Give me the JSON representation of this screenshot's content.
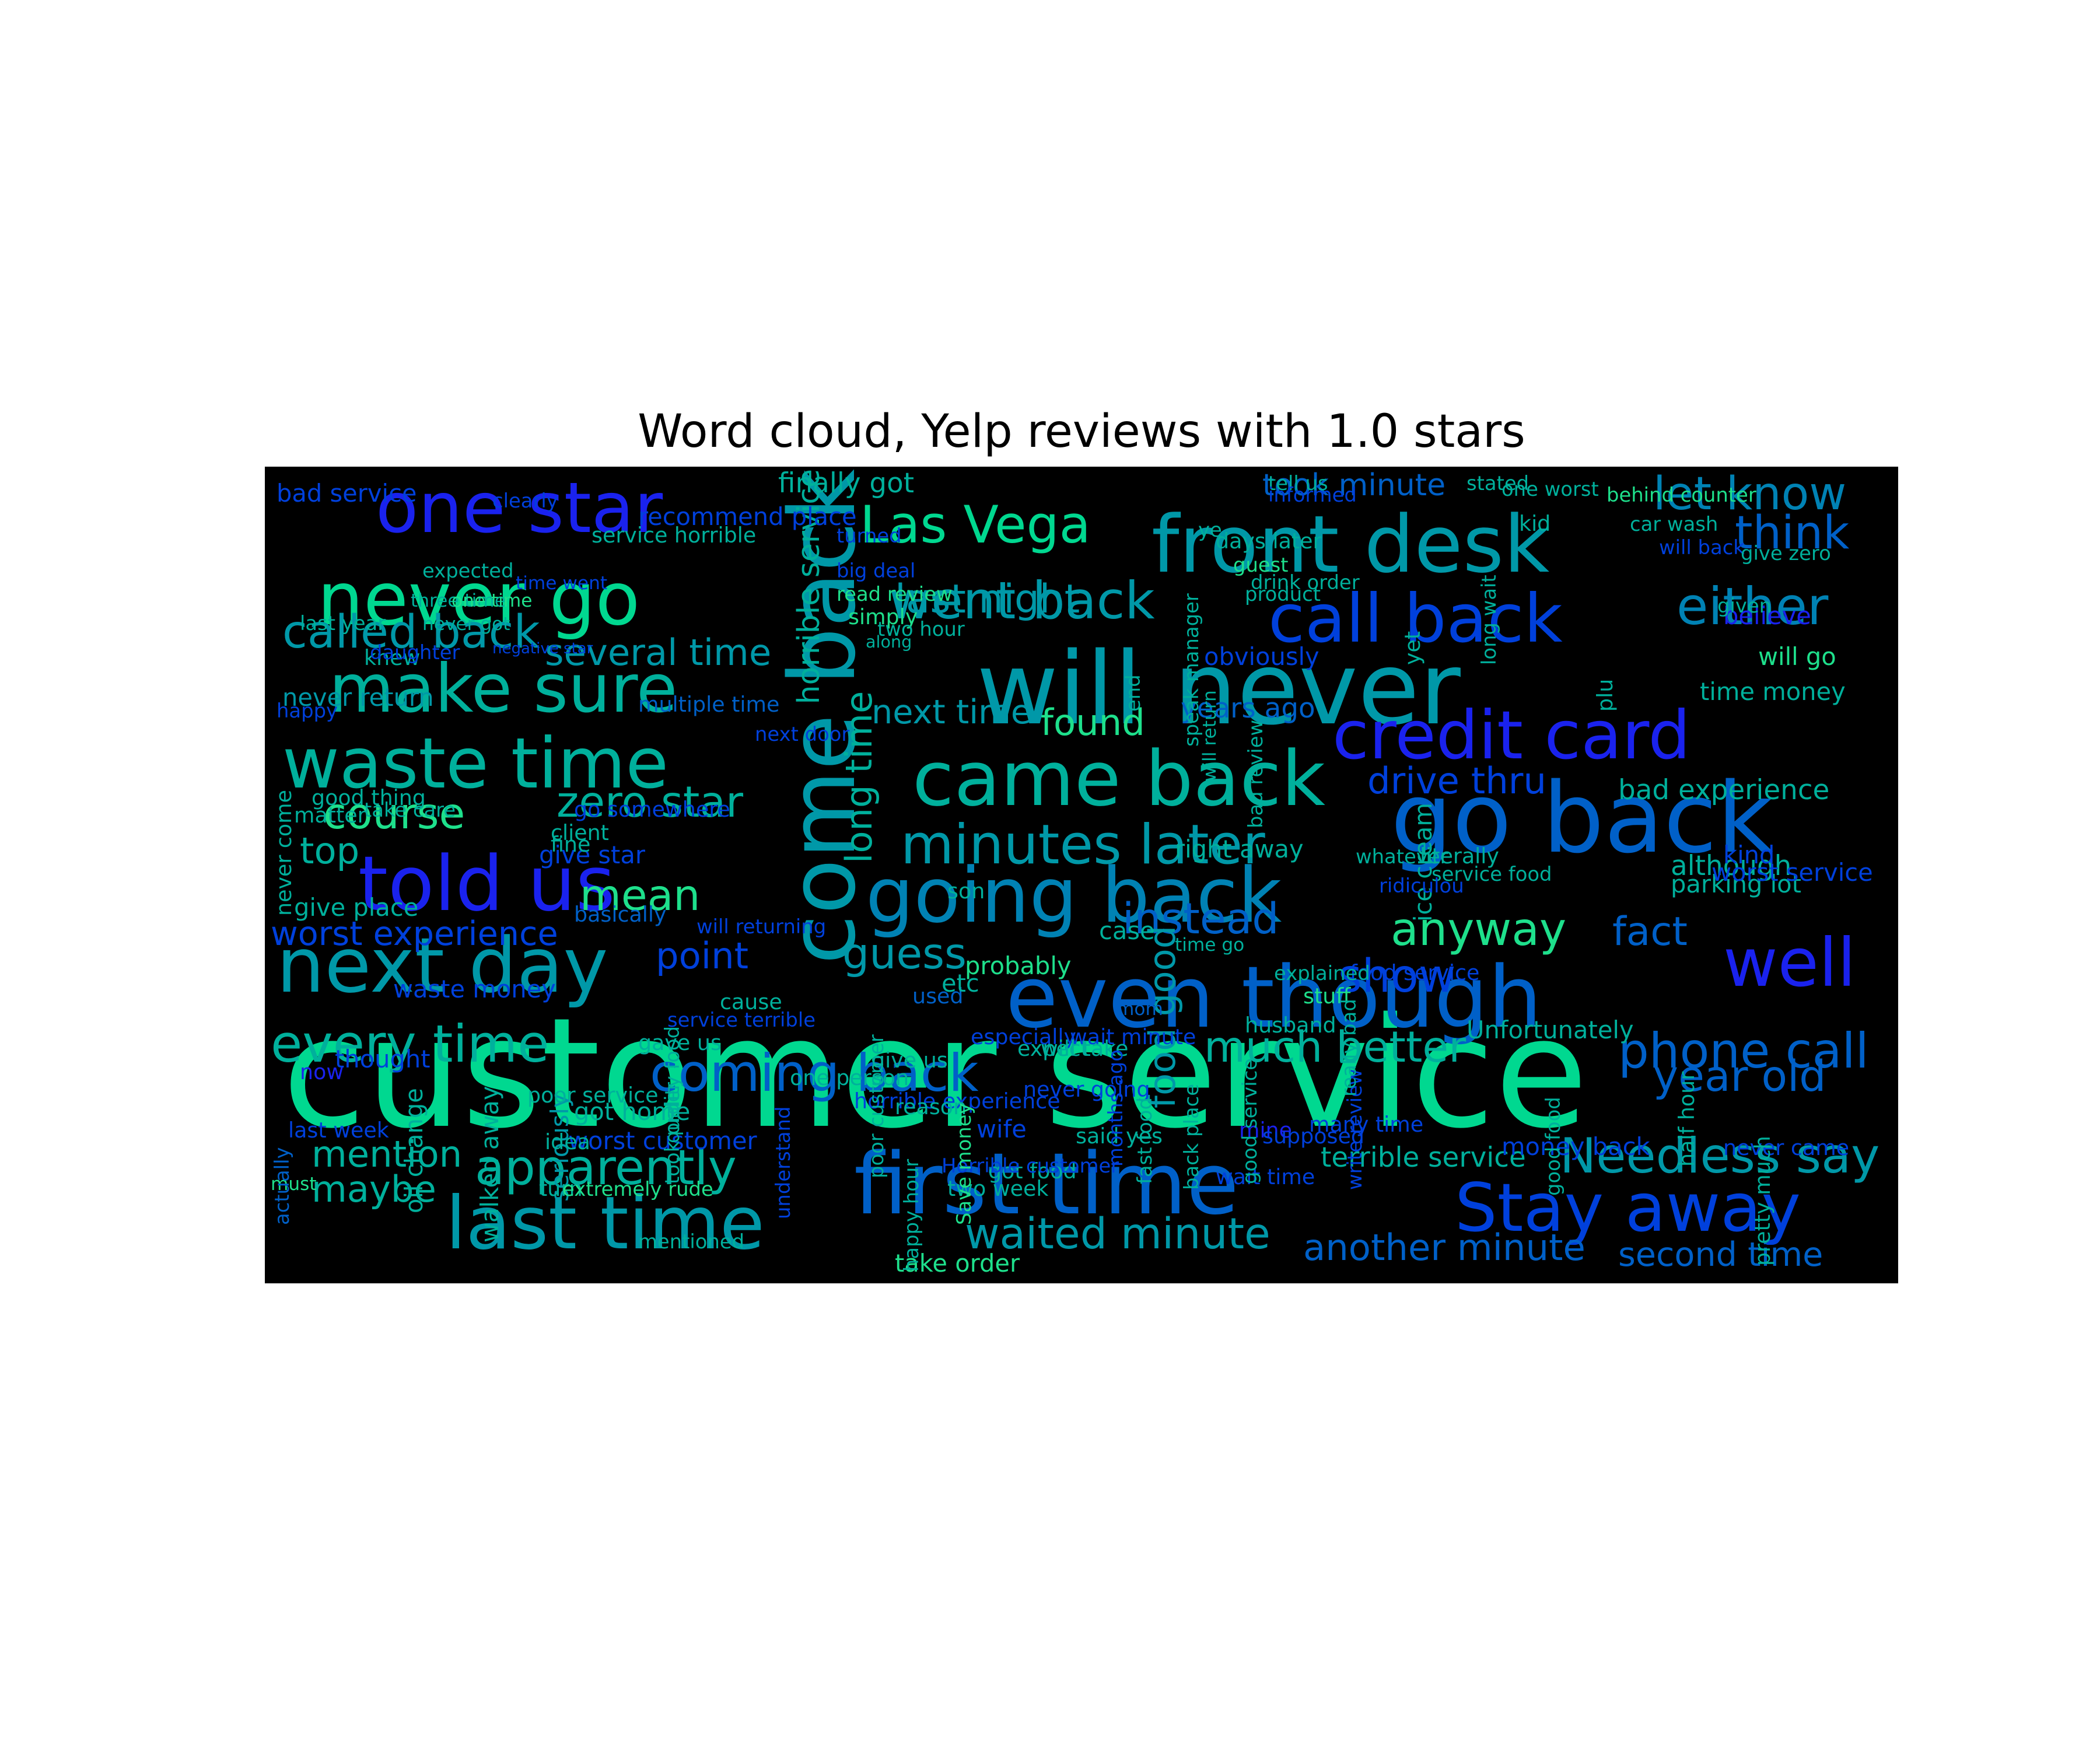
{
  "chart_data": {
    "type": "wordcloud",
    "title": "Word cloud, Yelp reviews with 1.0 stars",
    "background": "#000000",
    "palette": {
      "mint": "#00d890",
      "green": "#1ee08c",
      "teal": "#00b09c",
      "teal2": "#0098a8",
      "cyan": "#0082b4",
      "sky": "#0060c8",
      "blue": "#0040dc",
      "royal": "#1a22ee"
    },
    "words": [
      {
        "text": "customer service",
        "size": 100,
        "color": "mint"
      },
      {
        "text": "will never",
        "size": 66,
        "color": "teal2"
      },
      {
        "text": "go back",
        "size": 64,
        "color": "sky"
      },
      {
        "text": "come back",
        "size": 60,
        "color": "teal2",
        "vertical": true
      },
      {
        "text": "even though",
        "size": 56,
        "color": "sky"
      },
      {
        "text": "first time",
        "size": 56,
        "color": "sky"
      },
      {
        "text": "front desk",
        "size": 52,
        "color": "teal2"
      },
      {
        "text": "came back",
        "size": 50,
        "color": "teal"
      },
      {
        "text": "going back",
        "size": 50,
        "color": "cyan"
      },
      {
        "text": "next day",
        "size": 50,
        "color": "teal2"
      },
      {
        "text": "told us",
        "size": 50,
        "color": "royal"
      },
      {
        "text": "waste time",
        "size": 46,
        "color": "teal"
      },
      {
        "text": "never go",
        "size": 48,
        "color": "mint"
      },
      {
        "text": "one star",
        "size": 46,
        "color": "royal"
      },
      {
        "text": "last time",
        "size": 48,
        "color": "teal2"
      },
      {
        "text": "call back",
        "size": 44,
        "color": "blue"
      },
      {
        "text": "credit card",
        "size": 44,
        "color": "royal"
      },
      {
        "text": "make sure",
        "size": 44,
        "color": "teal"
      },
      {
        "text": "Stay away",
        "size": 44,
        "color": "blue"
      },
      {
        "text": "well",
        "size": 44,
        "color": "royal"
      },
      {
        "text": "minutes later",
        "size": 36,
        "color": "teal2"
      },
      {
        "text": "Las Vega",
        "size": 34,
        "color": "mint"
      },
      {
        "text": "went back",
        "size": 34,
        "color": "teal2"
      },
      {
        "text": "either",
        "size": 34,
        "color": "cyan"
      },
      {
        "text": "every time",
        "size": 34,
        "color": "teal"
      },
      {
        "text": "coming back",
        "size": 34,
        "color": "sky"
      },
      {
        "text": "apparently",
        "size": 32,
        "color": "teal"
      },
      {
        "text": "Needless say",
        "size": 32,
        "color": "teal2"
      },
      {
        "text": "phone call",
        "size": 32,
        "color": "sky"
      },
      {
        "text": "let know",
        "size": 30,
        "color": "cyan"
      },
      {
        "text": "think",
        "size": 30,
        "color": "sky"
      },
      {
        "text": "called back",
        "size": 30,
        "color": "teal2"
      },
      {
        "text": "anyway",
        "size": 30,
        "color": "green"
      },
      {
        "text": "show",
        "size": 30,
        "color": "blue"
      },
      {
        "text": "instead",
        "size": 28,
        "color": "sky"
      },
      {
        "text": "mean",
        "size": 28,
        "color": "green"
      },
      {
        "text": "guess",
        "size": 28,
        "color": "teal2"
      },
      {
        "text": "much better",
        "size": 28,
        "color": "teal"
      },
      {
        "text": "year old",
        "size": 28,
        "color": "sky"
      },
      {
        "text": "waited minute",
        "size": 28,
        "color": "teal2"
      },
      {
        "text": "zero star",
        "size": 28,
        "color": "teal"
      },
      {
        "text": "course",
        "size": 28,
        "color": "green"
      },
      {
        "text": "last night",
        "size": 26,
        "color": "teal2"
      },
      {
        "text": "several time",
        "size": 24,
        "color": "teal2"
      },
      {
        "text": "long time",
        "size": 24,
        "color": "teal",
        "vertical": true
      },
      {
        "text": "fact",
        "size": 26,
        "color": "sky"
      },
      {
        "text": "point",
        "size": 24,
        "color": "blue"
      },
      {
        "text": "found",
        "size": 24,
        "color": "green"
      },
      {
        "text": "next time",
        "size": 22,
        "color": "teal2"
      },
      {
        "text": "drive thru",
        "size": 24,
        "color": "blue"
      },
      {
        "text": "mention",
        "size": 24,
        "color": "teal"
      },
      {
        "text": "maybe",
        "size": 24,
        "color": "teal"
      },
      {
        "text": "worst experience",
        "size": 22,
        "color": "blue"
      },
      {
        "text": "another minute",
        "size": 24,
        "color": "sky"
      },
      {
        "text": "second time",
        "size": 22,
        "color": "sky"
      },
      {
        "text": "took minute",
        "size": 20,
        "color": "sky"
      },
      {
        "text": "top",
        "size": 24,
        "color": "teal"
      },
      {
        "text": "food good",
        "size": 24,
        "color": "teal2",
        "vertical": true
      },
      {
        "text": "terrible service",
        "size": 18,
        "color": "teal"
      },
      {
        "text": "bad experience",
        "size": 18,
        "color": "teal"
      },
      {
        "text": "horrible service",
        "size": 20,
        "color": "teal",
        "vertical": true
      },
      {
        "text": "finally got",
        "size": 18,
        "color": "teal"
      },
      {
        "text": "bad service",
        "size": 16,
        "color": "blue"
      },
      {
        "text": "believe",
        "size": 16,
        "color": "royal"
      },
      {
        "text": "will go",
        "size": 16,
        "color": "green"
      },
      {
        "text": "time money",
        "size": 16,
        "color": "teal"
      },
      {
        "text": "years ago",
        "size": 18,
        "color": "sky"
      },
      {
        "text": "obviously",
        "size": 16,
        "color": "blue"
      },
      {
        "text": "right away",
        "size": 16,
        "color": "teal"
      },
      {
        "text": "although",
        "size": 18,
        "color": "teal"
      },
      {
        "text": "parking lot",
        "size": 16,
        "color": "teal"
      },
      {
        "text": "Unfortunately",
        "size": 16,
        "color": "teal"
      },
      {
        "text": "basically",
        "size": 14,
        "color": "sky"
      },
      {
        "text": "never return",
        "size": 16,
        "color": "teal2"
      },
      {
        "text": "multiple time",
        "size": 14,
        "color": "sky"
      },
      {
        "text": "recommend place",
        "size": 16,
        "color": "blue"
      },
      {
        "text": "give place",
        "size": 16,
        "color": "teal"
      },
      {
        "text": "money back",
        "size": 16,
        "color": "blue"
      },
      {
        "text": "worst customer",
        "size": 16,
        "color": "blue"
      },
      {
        "text": "worst service",
        "size": 16,
        "color": "blue"
      },
      {
        "text": "service horrible",
        "size": 14,
        "color": "teal"
      },
      {
        "text": "seriously",
        "size": 16,
        "color": "teal2",
        "vertical": true
      },
      {
        "text": "ice cream",
        "size": 16,
        "color": "teal",
        "vertical": true
      },
      {
        "text": "walked away",
        "size": 16,
        "color": "teal",
        "vertical": true
      },
      {
        "text": "oil change",
        "size": 16,
        "color": "teal",
        "vertical": true
      },
      {
        "text": "give star",
        "size": 16,
        "color": "blue"
      },
      {
        "text": "waste money",
        "size": 16,
        "color": "blue"
      },
      {
        "text": "take order",
        "size": 16,
        "color": "green"
      },
      {
        "text": "horrible experience",
        "size": 14,
        "color": "blue"
      },
      {
        "text": "got home",
        "size": 16,
        "color": "teal"
      },
      {
        "text": "poor service",
        "size": 14,
        "color": "teal"
      },
      {
        "text": "give us",
        "size": 14,
        "color": "teal"
      },
      {
        "text": "gave us",
        "size": 14,
        "color": "teal"
      },
      {
        "text": "wait minute",
        "size": 14,
        "color": "blue"
      },
      {
        "text": "thought",
        "size": 16,
        "color": "blue"
      },
      {
        "text": "probably",
        "size": 16,
        "color": "green"
      },
      {
        "text": "case",
        "size": 16,
        "color": "teal"
      },
      {
        "text": "one person",
        "size": 14,
        "color": "teal"
      },
      {
        "text": "good thing",
        "size": 14,
        "color": "teal"
      },
      {
        "text": "go somewhere",
        "size": 14,
        "color": "blue"
      },
      {
        "text": "son",
        "size": 14,
        "color": "teal"
      },
      {
        "text": "matter",
        "size": 14,
        "color": "teal"
      },
      {
        "text": "especially",
        "size": 14,
        "color": "blue"
      },
      {
        "text": "client",
        "size": 14,
        "color": "teal"
      },
      {
        "text": "fine",
        "size": 14,
        "color": "teal"
      },
      {
        "text": "now",
        "size": 14,
        "color": "royal"
      },
      {
        "text": "last week",
        "size": 14,
        "color": "blue"
      },
      {
        "text": "idea",
        "size": 14,
        "color": "teal"
      },
      {
        "text": "wife",
        "size": 16,
        "color": "blue"
      },
      {
        "text": "got food",
        "size": 14,
        "color": "teal"
      },
      {
        "text": "two week",
        "size": 14,
        "color": "teal"
      },
      {
        "text": "said yes",
        "size": 14,
        "color": "teal"
      },
      {
        "text": "mine",
        "size": 14,
        "color": "royal"
      },
      {
        "text": "wait time",
        "size": 14,
        "color": "blue"
      },
      {
        "text": "never came",
        "size": 14,
        "color": "blue"
      },
      {
        "text": "many time",
        "size": 14,
        "color": "blue"
      },
      {
        "text": "supposed",
        "size": 14,
        "color": "blue"
      },
      {
        "text": "expect",
        "size": 14,
        "color": "teal"
      },
      {
        "text": "never going",
        "size": 14,
        "color": "blue"
      },
      {
        "text": "reason",
        "size": 14,
        "color": "teal"
      },
      {
        "text": "will returning",
        "size": 13,
        "color": "blue"
      },
      {
        "text": "service terrible",
        "size": 13,
        "color": "blue"
      },
      {
        "text": "cause",
        "size": 14,
        "color": "teal"
      },
      {
        "text": "used",
        "size": 14,
        "color": "sky"
      },
      {
        "text": "mom",
        "size": 12,
        "color": "sky"
      },
      {
        "text": "husband",
        "size": 14,
        "color": "teal"
      },
      {
        "text": "will take",
        "size": 14,
        "color": "teal"
      },
      {
        "text": "etc",
        "size": 16,
        "color": "teal"
      },
      {
        "text": "stuff",
        "size": 14,
        "color": "green"
      },
      {
        "text": "time go",
        "size": 12,
        "color": "teal"
      },
      {
        "text": "food service",
        "size": 14,
        "color": "blue"
      },
      {
        "text": "service food",
        "size": 13,
        "color": "teal"
      },
      {
        "text": "ridiculou",
        "size": 13,
        "color": "blue"
      },
      {
        "text": "literally",
        "size": 14,
        "color": "teal"
      },
      {
        "text": "whatever",
        "size": 13,
        "color": "teal"
      },
      {
        "text": "explained",
        "size": 13,
        "color": "teal"
      },
      {
        "text": "must",
        "size": 12,
        "color": "green"
      },
      {
        "text": "turn",
        "size": 14,
        "color": "teal"
      },
      {
        "text": "extremely rude",
        "size": 13,
        "color": "green"
      },
      {
        "text": "mentioned",
        "size": 13,
        "color": "teal"
      },
      {
        "text": "Horrible customer",
        "size": 13,
        "color": "blue"
      },
      {
        "text": "Save money",
        "size": 13,
        "color": "green",
        "vertical": true
      },
      {
        "text": "happy hour",
        "size": 13,
        "color": "teal",
        "vertical": true
      },
      {
        "text": "months ago",
        "size": 13,
        "color": "blue",
        "vertical": true
      },
      {
        "text": "good service",
        "size": 13,
        "color": "teal",
        "vertical": true
      },
      {
        "text": "good food",
        "size": 13,
        "color": "teal",
        "vertical": true
      },
      {
        "text": "pretty much",
        "size": 14,
        "color": "teal",
        "vertical": true
      },
      {
        "text": "half hour",
        "size": 14,
        "color": "teal",
        "vertical": true
      },
      {
        "text": "back place",
        "size": 13,
        "color": "teal",
        "vertical": true
      },
      {
        "text": "write review",
        "size": 13,
        "color": "blue",
        "vertical": true
      },
      {
        "text": "understand",
        "size": 13,
        "color": "blue",
        "vertical": true
      },
      {
        "text": "poor customer",
        "size": 13,
        "color": "teal",
        "vertical": true
      },
      {
        "text": "quality food",
        "size": 13,
        "color": "teal",
        "vertical": true
      },
      {
        "text": "took order",
        "size": 13,
        "color": "teal",
        "vertical": true
      },
      {
        "text": "actually",
        "size": 13,
        "color": "sky",
        "vertical": true
      },
      {
        "text": "never come",
        "size": 14,
        "color": "teal",
        "vertical": true
      },
      {
        "text": "really bad",
        "size": 13,
        "color": "teal",
        "vertical": true
      },
      {
        "text": "fast food",
        "size": 13,
        "color": "teal",
        "vertical": true
      },
      {
        "text": "end",
        "size": 13,
        "color": "teal",
        "vertical": true
      },
      {
        "text": "speak manager",
        "size": 13,
        "color": "teal",
        "vertical": true
      },
      {
        "text": "will return",
        "size": 12,
        "color": "teal",
        "vertical": true
      },
      {
        "text": "bad review",
        "size": 13,
        "color": "teal",
        "vertical": true
      },
      {
        "text": "yet",
        "size": 14,
        "color": "teal",
        "vertical": true
      },
      {
        "text": "long wait",
        "size": 13,
        "color": "teal",
        "vertical": true
      },
      {
        "text": "plu",
        "size": 14,
        "color": "teal",
        "vertical": true
      },
      {
        "text": "kind",
        "size": 16,
        "color": "blue"
      },
      {
        "text": "happy",
        "size": 13,
        "color": "blue"
      },
      {
        "text": "knew",
        "size": 14,
        "color": "teal"
      },
      {
        "text": "take care",
        "size": 13,
        "color": "teal"
      },
      {
        "text": "next door",
        "size": 13,
        "color": "blue"
      },
      {
        "text": "one worst",
        "size": 13,
        "color": "teal"
      },
      {
        "text": "stated",
        "size": 13,
        "color": "teal"
      },
      {
        "text": "tell us",
        "size": 13,
        "color": "teal"
      },
      {
        "text": "informed",
        "size": 13,
        "color": "blue"
      },
      {
        "text": "behind counter",
        "size": 13,
        "color": "green"
      },
      {
        "text": "car wash",
        "size": 13,
        "color": "teal"
      },
      {
        "text": "kid",
        "size": 14,
        "color": "teal"
      },
      {
        "text": "will back",
        "size": 13,
        "color": "blue"
      },
      {
        "text": "give zero",
        "size": 13,
        "color": "teal"
      },
      {
        "text": "ye",
        "size": 13,
        "color": "teal"
      },
      {
        "text": "days later",
        "size": 14,
        "color": "teal"
      },
      {
        "text": "guest",
        "size": 13,
        "color": "green"
      },
      {
        "text": "drink order",
        "size": 13,
        "color": "teal"
      },
      {
        "text": "product",
        "size": 13,
        "color": "teal"
      },
      {
        "text": "given",
        "size": 13,
        "color": "teal"
      },
      {
        "text": "turned",
        "size": 13,
        "color": "blue"
      },
      {
        "text": "big deal",
        "size": 13,
        "color": "blue"
      },
      {
        "text": "read review",
        "size": 13,
        "color": "green"
      },
      {
        "text": "simply",
        "size": 14,
        "color": "green"
      },
      {
        "text": "two hour",
        "size": 13,
        "color": "teal"
      },
      {
        "text": "along",
        "size": 11,
        "color": "teal"
      },
      {
        "text": "clearly",
        "size": 13,
        "color": "blue"
      },
      {
        "text": "time went",
        "size": 12,
        "color": "blue"
      },
      {
        "text": "expected",
        "size": 13,
        "color": "teal"
      },
      {
        "text": "three time",
        "size": 12,
        "color": "teal"
      },
      {
        "text": "one time",
        "size": 12,
        "color": "green"
      },
      {
        "text": "never got",
        "size": 12,
        "color": "teal"
      },
      {
        "text": "last year",
        "size": 13,
        "color": "teal"
      },
      {
        "text": "daughter",
        "size": 13,
        "color": "blue"
      },
      {
        "text": "negative star",
        "size": 10,
        "color": "blue"
      }
    ]
  }
}
